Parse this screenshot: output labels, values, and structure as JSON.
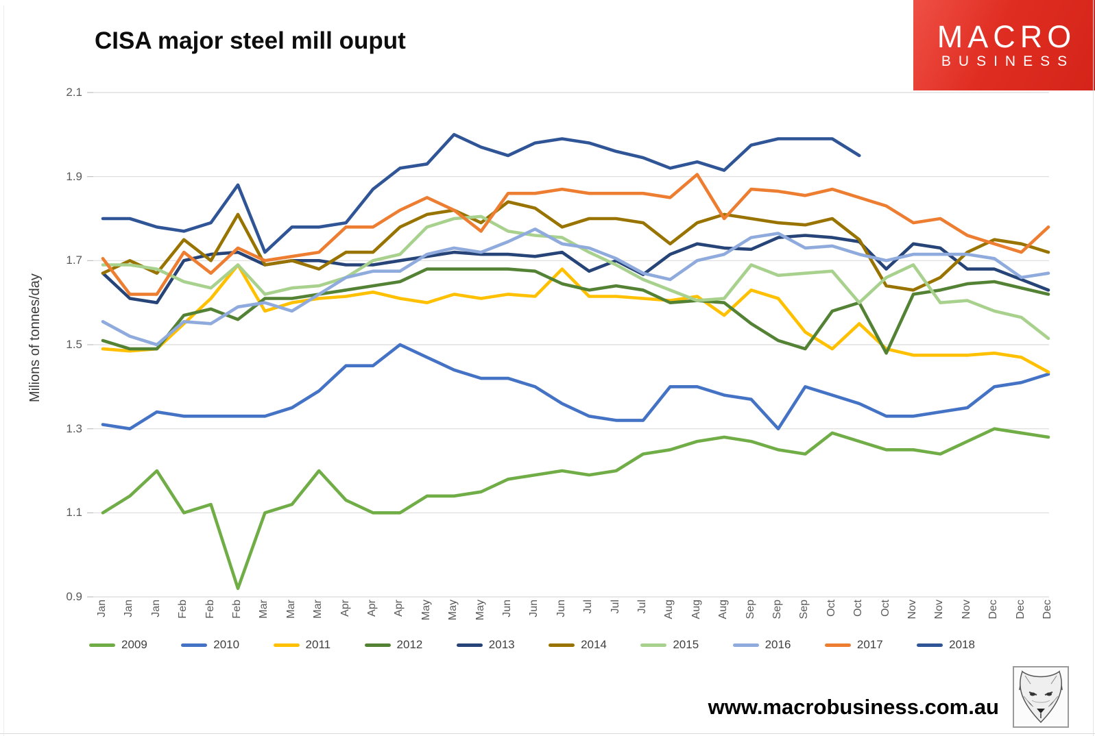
{
  "page": {
    "footer_url": "www.macrobusiness.com.au",
    "logo": {
      "line1": "MACRO",
      "line2": "BUSINESS",
      "bg_color": "#E02D22",
      "text_color": "#FFFFFF"
    },
    "footer_logo_icon": "wolf-head-sketch"
  },
  "chart_data": {
    "type": "line",
    "title": "CISA major steel mill ouput",
    "ylabel": "Milions of tonnes/day",
    "xlabel": "",
    "ylim": [
      0.9,
      2.1
    ],
    "yticks": [
      2.1,
      1.9,
      1.7,
      1.5,
      1.3,
      1.1,
      0.9
    ],
    "grid": true,
    "legend_position": "bottom",
    "x_labels": [
      "Jan",
      "Jan",
      "Jan",
      "Feb",
      "Feb",
      "Feb",
      "Mar",
      "Mar",
      "Mar",
      "Apr",
      "Apr",
      "Apr",
      "May",
      "May",
      "May",
      "Jun",
      "Jun",
      "Jun",
      "Jul",
      "Jul",
      "Jul",
      "Aug",
      "Aug",
      "Aug",
      "Sep",
      "Sep",
      "Sep",
      "Oct",
      "Oct",
      "Oct",
      "Nov",
      "Nov",
      "Nov",
      "Dec",
      "Dec",
      "Dec"
    ],
    "series": [
      {
        "name": "2009",
        "color": "#70AD47",
        "values": [
          1.1,
          1.14,
          1.2,
          1.1,
          1.12,
          0.92,
          1.1,
          1.12,
          1.2,
          1.13,
          1.1,
          1.1,
          1.14,
          1.14,
          1.15,
          1.18,
          1.19,
          1.2,
          1.19,
          1.2,
          1.24,
          1.25,
          1.27,
          1.28,
          1.27,
          1.25,
          1.24,
          1.29,
          1.27,
          1.25,
          1.25,
          1.24,
          1.27,
          1.3,
          1.29,
          1.28
        ]
      },
      {
        "name": "2010",
        "color": "#4472C4",
        "values": [
          1.31,
          1.3,
          1.34,
          1.33,
          1.33,
          1.33,
          1.33,
          1.35,
          1.39,
          1.45,
          1.45,
          1.5,
          1.47,
          1.44,
          1.42,
          1.42,
          1.4,
          1.36,
          1.33,
          1.32,
          1.32,
          1.4,
          1.4,
          1.38,
          1.37,
          1.3,
          1.4,
          1.38,
          1.36,
          1.33,
          1.33,
          1.34,
          1.35,
          1.4,
          1.41,
          1.43
        ]
      },
      {
        "name": "2011",
        "color": "#FFC000",
        "values": [
          1.49,
          1.485,
          1.49,
          1.55,
          1.61,
          1.69,
          1.58,
          1.6,
          1.61,
          1.615,
          1.625,
          1.61,
          1.6,
          1.62,
          1.61,
          1.62,
          1.615,
          1.68,
          1.615,
          1.615,
          1.61,
          1.605,
          1.615,
          1.57,
          1.63,
          1.61,
          1.53,
          1.49,
          1.55,
          1.49,
          1.475,
          1.475,
          1.475,
          1.48,
          1.47,
          1.435
        ]
      },
      {
        "name": "2012",
        "color": "#548235",
        "values": [
          1.51,
          1.49,
          1.49,
          1.57,
          1.585,
          1.56,
          1.61,
          1.61,
          1.62,
          1.63,
          1.64,
          1.65,
          1.68,
          1.68,
          1.68,
          1.68,
          1.675,
          1.645,
          1.63,
          1.64,
          1.63,
          1.6,
          1.605,
          1.6,
          1.55,
          1.51,
          1.49,
          1.58,
          1.6,
          1.48,
          1.62,
          1.63,
          1.645,
          1.65,
          1.635,
          1.62
        ]
      },
      {
        "name": "2013",
        "color": "#264478",
        "values": [
          1.67,
          1.61,
          1.6,
          1.7,
          1.715,
          1.72,
          1.69,
          1.7,
          1.7,
          1.69,
          1.69,
          1.7,
          1.71,
          1.72,
          1.715,
          1.715,
          1.71,
          1.72,
          1.675,
          1.7,
          1.667,
          1.715,
          1.74,
          1.73,
          1.727,
          1.755,
          1.76,
          1.755,
          1.745,
          1.68,
          1.74,
          1.73,
          1.68,
          1.68,
          1.655,
          1.63
        ]
      },
      {
        "name": "2014",
        "color": "#997300",
        "values": [
          1.67,
          1.7,
          1.67,
          1.75,
          1.7,
          1.81,
          1.69,
          1.7,
          1.68,
          1.72,
          1.72,
          1.78,
          1.81,
          1.82,
          1.79,
          1.84,
          1.825,
          1.78,
          1.8,
          1.8,
          1.79,
          1.74,
          1.79,
          1.81,
          1.8,
          1.79,
          1.785,
          1.8,
          1.75,
          1.64,
          1.63,
          1.66,
          1.72,
          1.75,
          1.74,
          1.72
        ]
      },
      {
        "name": "2015",
        "color": "#A9D18E",
        "values": [
          1.69,
          1.69,
          1.68,
          1.65,
          1.635,
          1.69,
          1.62,
          1.635,
          1.64,
          1.66,
          1.7,
          1.715,
          1.78,
          1.8,
          1.805,
          1.77,
          1.76,
          1.755,
          1.72,
          1.69,
          1.655,
          1.63,
          1.605,
          1.61,
          1.69,
          1.665,
          1.67,
          1.675,
          1.6,
          1.66,
          1.69,
          1.6,
          1.605,
          1.58,
          1.565,
          1.515
        ]
      },
      {
        "name": "2016",
        "color": "#8FAADC",
        "values": [
          1.555,
          1.52,
          1.5,
          1.555,
          1.55,
          1.59,
          1.6,
          1.58,
          1.62,
          1.66,
          1.675,
          1.675,
          1.715,
          1.73,
          1.72,
          1.745,
          1.775,
          1.74,
          1.73,
          1.705,
          1.67,
          1.655,
          1.7,
          1.715,
          1.755,
          1.765,
          1.73,
          1.735,
          1.715,
          1.7,
          1.715,
          1.715,
          1.715,
          1.705,
          1.66,
          1.67
        ]
      },
      {
        "name": "2017",
        "color": "#ED7D31",
        "values": [
          1.705,
          1.62,
          1.62,
          1.72,
          1.67,
          1.73,
          1.7,
          1.71,
          1.72,
          1.78,
          1.78,
          1.82,
          1.85,
          1.82,
          1.77,
          1.86,
          1.86,
          1.87,
          1.86,
          1.86,
          1.86,
          1.85,
          1.905,
          1.8,
          1.87,
          1.865,
          1.855,
          1.87,
          1.85,
          1.83,
          1.79,
          1.8,
          1.76,
          1.74,
          1.72,
          1.78
        ]
      },
      {
        "name": "2018",
        "color": "#2F5597",
        "values": [
          1.8,
          1.8,
          1.78,
          1.77,
          1.79,
          1.88,
          1.72,
          1.78,
          1.78,
          1.79,
          1.87,
          1.92,
          1.93,
          2.0,
          1.97,
          1.95,
          1.98,
          1.99,
          1.98,
          1.96,
          1.945,
          1.92,
          1.935,
          1.915,
          1.975,
          1.99,
          1.99,
          1.99,
          1.95
        ]
      }
    ]
  }
}
